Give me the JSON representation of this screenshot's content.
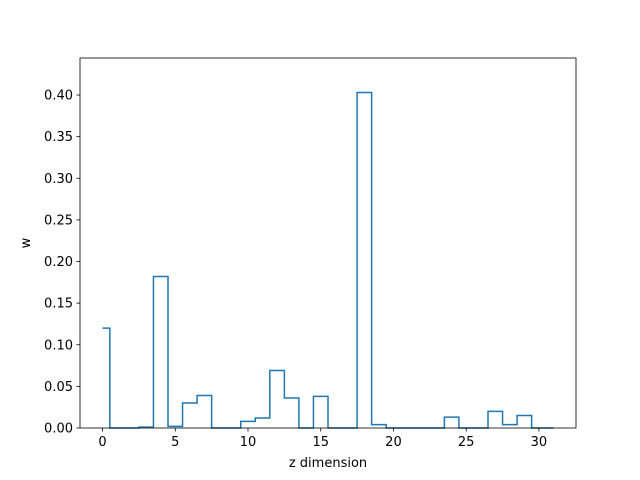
{
  "chart_data": {
    "type": "step",
    "xlabel": "z dimension",
    "ylabel": "w",
    "xlim": [
      -1.55,
      32.55
    ],
    "ylim": [
      0,
      0.4445
    ],
    "xticks": [
      0,
      5,
      10,
      15,
      20,
      25,
      30
    ],
    "yticks": [
      0.0,
      0.05,
      0.1,
      0.15,
      0.2,
      0.25,
      0.3,
      0.35,
      0.4
    ],
    "ytick_labels": [
      "0.00",
      "0.05",
      "0.10",
      "0.15",
      "0.20",
      "0.25",
      "0.30",
      "0.35",
      "0.40"
    ],
    "series": [
      {
        "color": "#1f77b4",
        "step": "mid",
        "x": [
          0,
          1,
          2,
          3,
          4,
          5,
          6,
          7,
          8,
          9,
          10,
          11,
          12,
          13,
          14,
          15,
          16,
          17,
          18,
          19,
          20,
          21,
          22,
          23,
          24,
          25,
          26,
          27,
          28,
          29,
          30,
          31
        ],
        "values": [
          0.12,
          0.0,
          0.0,
          0.001,
          0.182,
          0.002,
          0.03,
          0.039,
          0.0,
          0.0,
          0.008,
          0.012,
          0.069,
          0.036,
          0.0,
          0.038,
          0.0,
          0.0,
          0.403,
          0.004,
          0.0,
          0.0,
          0.0,
          0.0,
          0.013,
          0.0,
          0.0,
          0.02,
          0.004,
          0.015,
          0.0,
          0.0
        ]
      }
    ]
  }
}
